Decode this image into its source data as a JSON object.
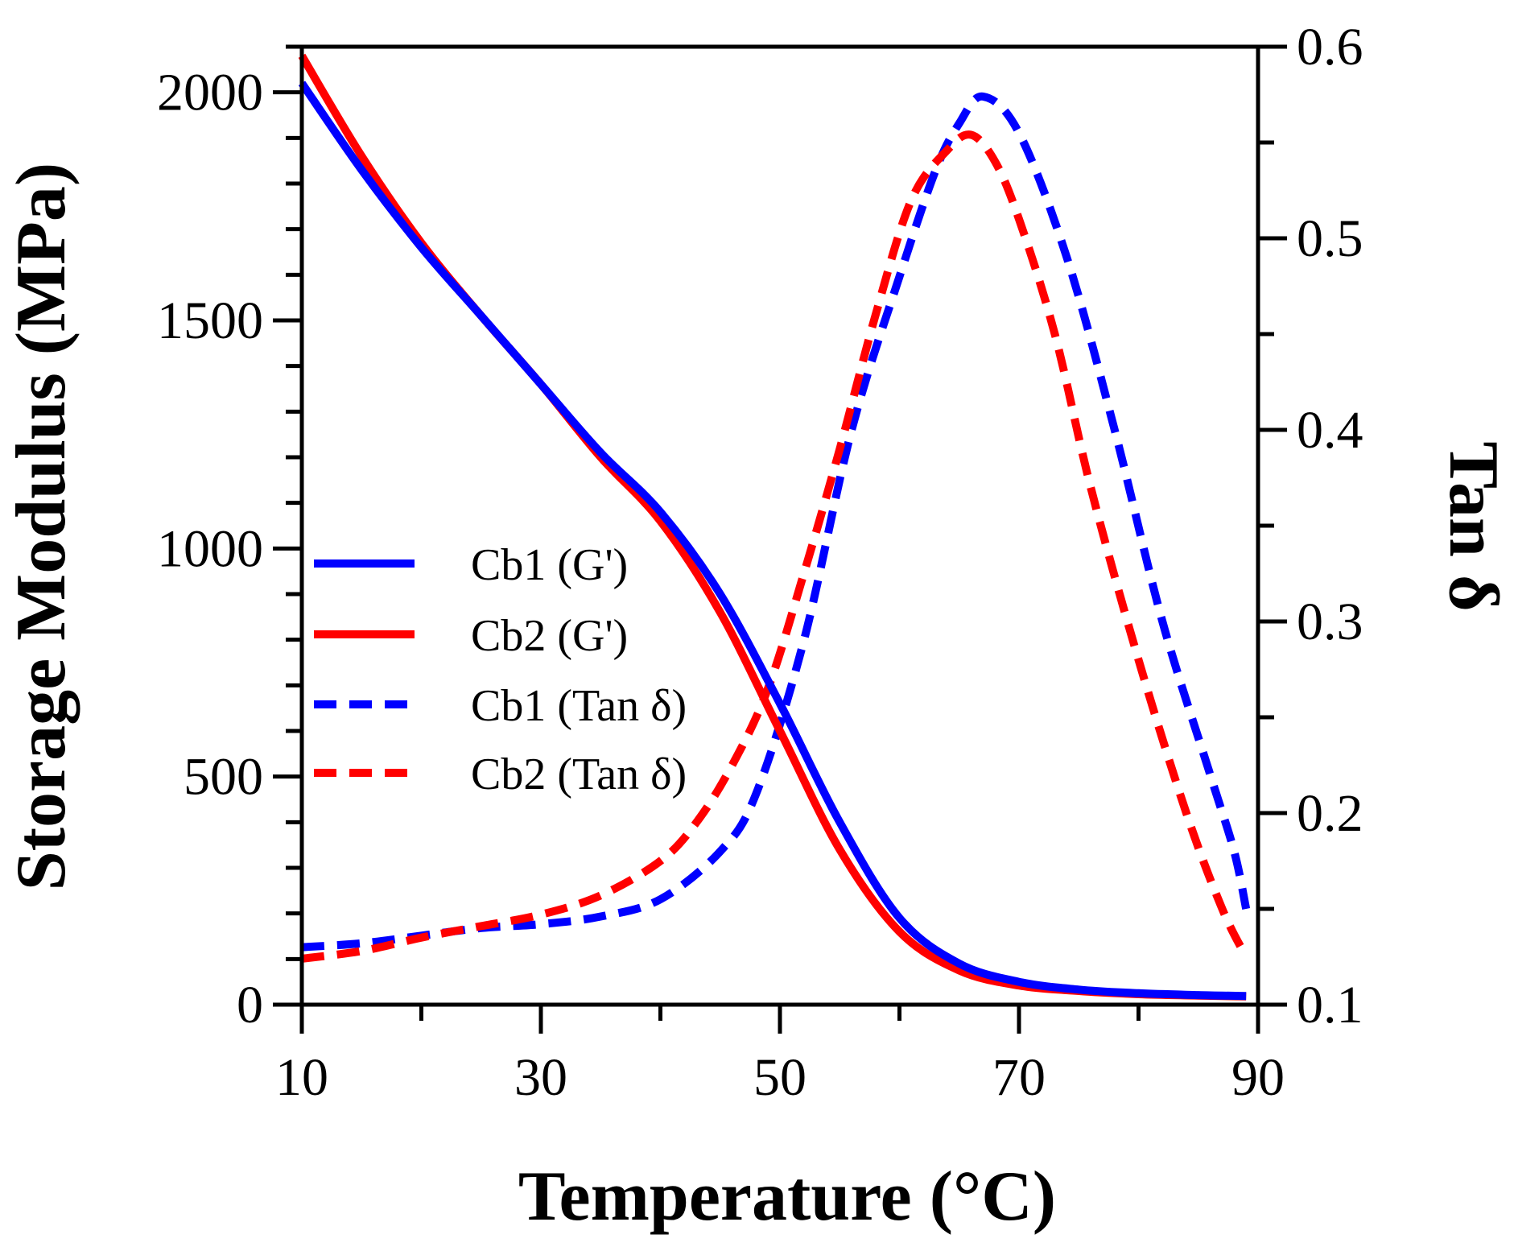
{
  "chart_data": {
    "type": "line",
    "title": "",
    "xlabel": "Temperature (°C)",
    "ylabel_left": "Storage Modulus (MPa)",
    "ylabel_right": "Tan δ",
    "xlim": [
      10,
      90
    ],
    "ylim_left": [
      0,
      2100
    ],
    "ylim_right": [
      0.1,
      0.6
    ],
    "x_ticks": [
      10,
      30,
      50,
      70,
      90
    ],
    "y_left_ticks": [
      0,
      500,
      1000,
      1500,
      2000
    ],
    "y_right_ticks": [
      0.1,
      0.2,
      0.3,
      0.4,
      0.5,
      0.6
    ],
    "y_right_tick_labels": [
      "0.1",
      "0.2",
      "0.3",
      "0.4",
      "0.5",
      "0.6"
    ],
    "legend_position": "center-left",
    "series": [
      {
        "name": "Cb1 (G')",
        "axis": "left",
        "style": "solid",
        "color": "#0000ff",
        "x": [
          10,
          15,
          20,
          25,
          30,
          35,
          40,
          45,
          50,
          55,
          60,
          65,
          70,
          75,
          80,
          85,
          89
        ],
        "y": [
          2020,
          1830,
          1660,
          1510,
          1360,
          1210,
          1080,
          900,
          660,
          400,
          190,
          90,
          50,
          33,
          25,
          21,
          19
        ]
      },
      {
        "name": "Cb2 (G')",
        "axis": "left",
        "style": "solid",
        "color": "#ff0000",
        "x": [
          10,
          15,
          20,
          25,
          30,
          35,
          40,
          45,
          50,
          55,
          60,
          65,
          70,
          75,
          80,
          85,
          89
        ],
        "y": [
          2080,
          1860,
          1670,
          1510,
          1360,
          1200,
          1060,
          860,
          600,
          340,
          160,
          75,
          42,
          30,
          23,
          20,
          18
        ]
      },
      {
        "name": "Cb1 (Tan δ)",
        "axis": "right",
        "style": "dashed",
        "color": "#0000ff",
        "x": [
          10,
          15,
          20,
          25,
          30,
          35,
          40,
          45,
          48,
          52,
          56,
          60,
          63,
          65,
          67,
          70,
          74,
          78,
          82,
          86,
          88,
          89
        ],
        "y": [
          0.13,
          0.132,
          0.136,
          0.14,
          0.142,
          0.146,
          0.155,
          0.18,
          0.21,
          0.29,
          0.4,
          0.48,
          0.535,
          0.56,
          0.574,
          0.555,
          0.49,
          0.4,
          0.3,
          0.22,
          0.18,
          0.15
        ]
      },
      {
        "name": "Cb2 (Tan δ)",
        "axis": "right",
        "style": "dashed",
        "color": "#ff0000",
        "x": [
          10,
          15,
          20,
          25,
          30,
          35,
          40,
          43,
          46,
          49,
          52,
          55,
          58,
          61,
          64,
          66,
          68,
          70,
          73,
          76,
          80,
          84,
          87,
          89
        ],
        "y": [
          0.124,
          0.128,
          0.135,
          0.141,
          0.147,
          0.157,
          0.175,
          0.195,
          0.225,
          0.265,
          0.325,
          0.39,
          0.46,
          0.52,
          0.546,
          0.554,
          0.54,
          0.51,
          0.45,
          0.37,
          0.28,
          0.2,
          0.15,
          0.125
        ]
      }
    ]
  }
}
